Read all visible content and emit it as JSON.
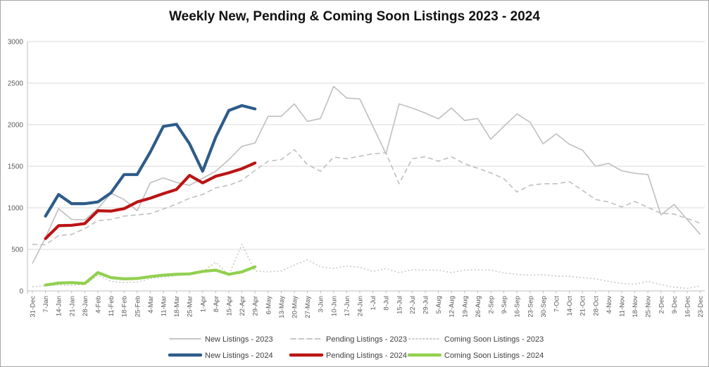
{
  "chart_data": {
    "type": "line",
    "title": "Weekly New, Pending & Coming Soon Listings 2023 - 2024",
    "grid": true,
    "legend_position": "bottom",
    "ylim": [
      0,
      3000
    ],
    "ytick_step": 500,
    "axis_color": "#595959",
    "grid_color": "#d9d9d9",
    "categories": [
      "31-Dec",
      "7-Jan",
      "14-Jan",
      "21-Jan",
      "28-Jan",
      "4-Feb",
      "11-Feb",
      "18-Feb",
      "25-Feb",
      "4-Mar",
      "11-Mar",
      "18-Mar",
      "25-Mar",
      "1-Apr",
      "8-Apr",
      "15-Apr",
      "22-Apr",
      "29-Apr",
      "6-May",
      "13-May",
      "20-May",
      "27-May",
      "3-Jun",
      "10-Jun",
      "17-Jun",
      "24-Jun",
      "1-Jul",
      "8-Jul",
      "15-Jul",
      "22-Jul",
      "29-Jul",
      "5-Aug",
      "12-Aug",
      "19-Aug",
      "26-Aug",
      "2-Sep",
      "9-Sep",
      "16-Sep",
      "23-Sep",
      "30-Sep",
      "7-Oct",
      "14-Oct",
      "21-Oct",
      "28-Oct",
      "4-Nov",
      "11-Nov",
      "18-Nov",
      "25-Nov",
      "2-Dec",
      "9-Dec",
      "16-Dec",
      "23-Dec"
    ],
    "series": [
      {
        "name": "New Listings - 2023",
        "color": "#bfbfbf",
        "style": "solid",
        "thick": false,
        "values": [
          330,
          640,
          990,
          860,
          855,
          990,
          1175,
          1100,
          965,
          1300,
          1360,
          1305,
          1270,
          1355,
          1440,
          1580,
          1740,
          1780,
          2100,
          2100,
          2250,
          2040,
          2075,
          2460,
          2320,
          2310,
          1980,
          1650,
          2250,
          2200,
          2140,
          2070,
          2200,
          2050,
          2075,
          1825,
          1980,
          2130,
          2030,
          1770,
          1890,
          1765,
          1695,
          1500,
          1535,
          1445,
          1415,
          1400,
          915,
          1040,
          860,
          680
        ]
      },
      {
        "name": "Pending Listings - 2023",
        "color": "#bfbfbf",
        "style": "dashed",
        "thick": false,
        "values": [
          560,
          555,
          665,
          680,
          750,
          845,
          860,
          900,
          915,
          930,
          985,
          1045,
          1115,
          1160,
          1240,
          1270,
          1330,
          1450,
          1560,
          1580,
          1700,
          1520,
          1440,
          1610,
          1590,
          1620,
          1650,
          1660,
          1290,
          1590,
          1615,
          1560,
          1615,
          1530,
          1475,
          1420,
          1350,
          1190,
          1270,
          1290,
          1290,
          1315,
          1210,
          1100,
          1070,
          1010,
          1075,
          1005,
          935,
          925,
          870,
          815
        ]
      },
      {
        "name": "Coming Soon Listings - 2023",
        "color": "#c3c3c3",
        "style": "dotted",
        "thick": false,
        "values": [
          50,
          65,
          70,
          70,
          75,
          190,
          115,
          100,
          105,
          150,
          165,
          185,
          200,
          230,
          345,
          190,
          560,
          240,
          230,
          240,
          310,
          375,
          290,
          270,
          300,
          285,
          235,
          270,
          220,
          255,
          250,
          250,
          220,
          250,
          255,
          250,
          215,
          200,
          190,
          195,
          180,
          175,
          160,
          145,
          115,
          90,
          80,
          115,
          75,
          45,
          30,
          60
        ]
      },
      {
        "name": "New Listings - 2024",
        "color": "#2e5c8a",
        "style": "solid",
        "thick": true,
        "values": [
          null,
          900,
          1160,
          1050,
          1050,
          1070,
          1180,
          1400,
          1400,
          1670,
          1980,
          2005,
          1770,
          1440,
          1850,
          2170,
          2230,
          2190,
          null,
          null,
          null,
          null,
          null,
          null,
          null,
          null,
          null,
          null,
          null,
          null,
          null,
          null,
          null,
          null,
          null,
          null,
          null,
          null,
          null,
          null,
          null,
          null,
          null,
          null,
          null,
          null,
          null,
          null,
          null,
          null,
          null,
          null
        ]
      },
      {
        "name": "Pending Listings - 2024",
        "color": "#bb1414",
        "style": "solid",
        "thick": true,
        "values": [
          null,
          630,
          785,
          790,
          810,
          965,
          960,
          990,
          1070,
          1115,
          1170,
          1220,
          1390,
          1300,
          1380,
          1420,
          1470,
          1540,
          null,
          null,
          null,
          null,
          null,
          null,
          null,
          null,
          null,
          null,
          null,
          null,
          null,
          null,
          null,
          null,
          null,
          null,
          null,
          null,
          null,
          null,
          null,
          null,
          null,
          null,
          null,
          null,
          null,
          null,
          null,
          null,
          null,
          null
        ]
      },
      {
        "name": "Coming Soon Listings - 2024",
        "color": "#92d050",
        "style": "solid",
        "thick": true,
        "values": [
          null,
          70,
          95,
          100,
          90,
          220,
          160,
          145,
          150,
          172,
          190,
          200,
          205,
          235,
          250,
          200,
          230,
          290,
          null,
          null,
          null,
          null,
          null,
          null,
          null,
          null,
          null,
          null,
          null,
          null,
          null,
          null,
          null,
          null,
          null,
          null,
          null,
          null,
          null,
          null,
          null,
          null,
          null,
          null,
          null,
          null,
          null,
          null,
          null,
          null,
          null,
          null
        ]
      }
    ]
  }
}
